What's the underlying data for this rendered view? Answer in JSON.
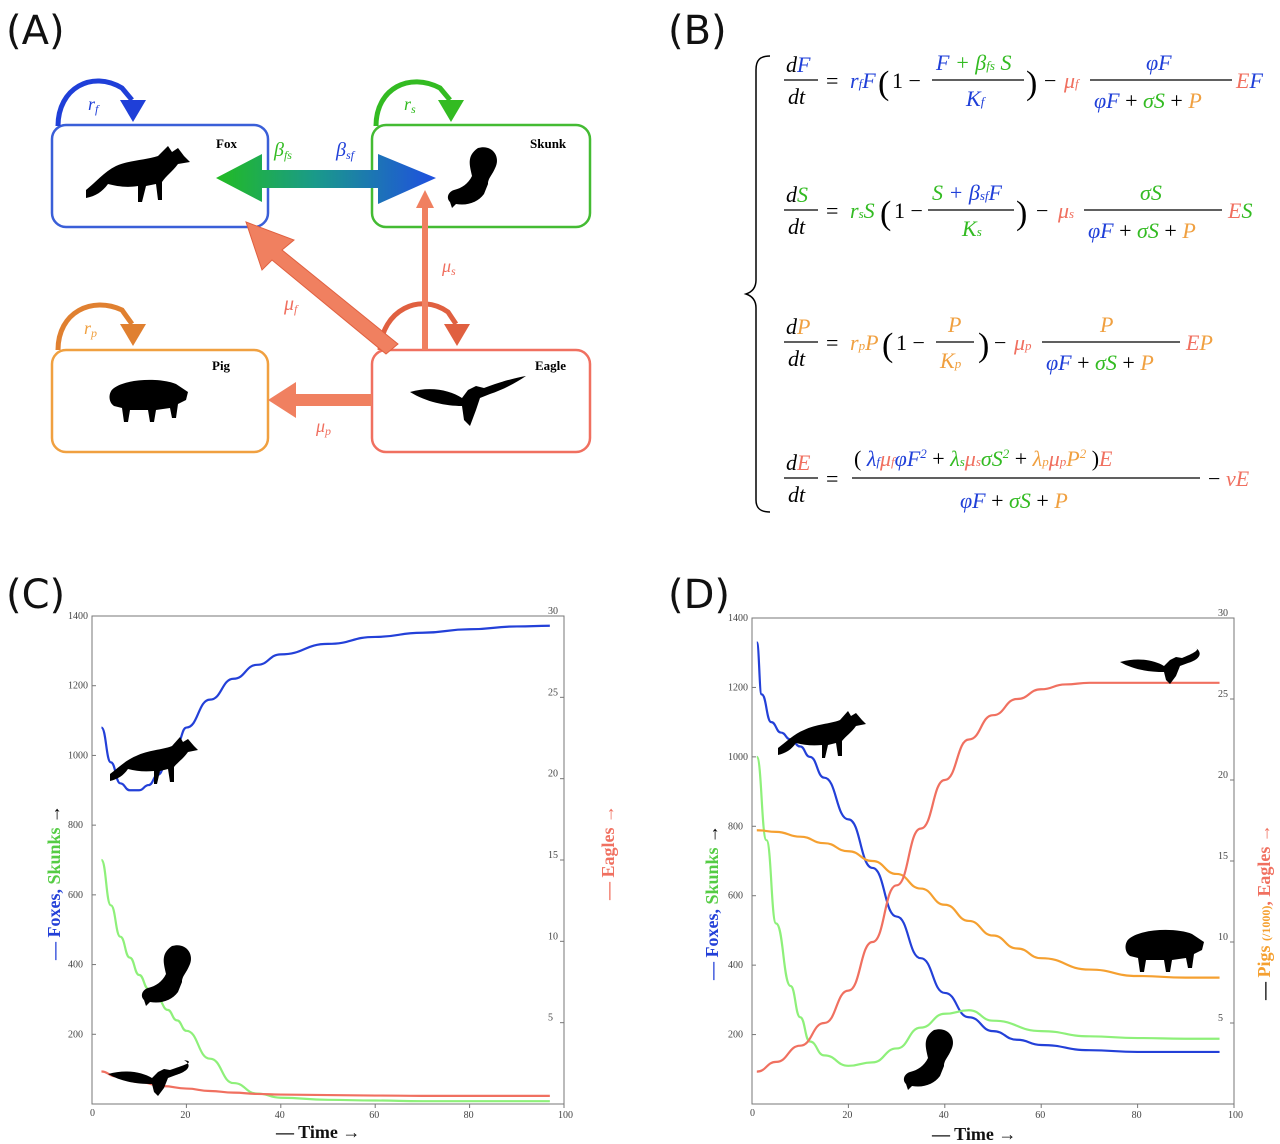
{
  "panels": {
    "a": "(A)",
    "b": "(B)",
    "c": "(C)",
    "d": "(D)"
  },
  "colors": {
    "fox": "#1f3fd8",
    "skunk": "#33bb22",
    "pig": "#f0a040",
    "eagle": "#f07060",
    "fox_line": "#2340d8",
    "skunk_line": "#8ef07a",
    "pig_line": "#f5a030",
    "eagle_line": "#f07060"
  },
  "diagram": {
    "boxes": {
      "fox": "Fox",
      "skunk": "Skunk",
      "pig": "Pig",
      "eagle": "Eagle"
    },
    "loops": {
      "fox": "r",
      "fox_sub": "f",
      "skunk": "r",
      "skunk_sub": "s",
      "pig": "r",
      "pig_sub": "p"
    },
    "arrows": {
      "beta_fs": "β",
      "beta_fs_sub": "fs",
      "beta_sf": "β",
      "beta_sf_sub": "sf",
      "mu_f": "μ",
      "mu_f_sub": "f",
      "mu_s": "μ",
      "mu_s_sub": "s",
      "mu_p": "μ",
      "mu_p_sub": "p"
    }
  },
  "equations": {
    "eq1": {
      "lhs_num": "F",
      "rhs": "r_f F(1 − (F + β_fs S)/K_f) − μ_f φF/(φF + σS + P) EF"
    },
    "eq2": {
      "lhs_num": "S",
      "rhs": "r_s S(1 − (S + β_sf F)/K_s) − μ_s σS/(φF + σS + P) ES"
    },
    "eq3": {
      "lhs_num": "P",
      "rhs": "r_p P(1 − P/K_p) − μ_p P/(φF + σS + P) EP"
    },
    "eq4": {
      "lhs_num": "E",
      "rhs": "(λ_f μ_f φF² + λ_s μ_s σS² + λ_p μ_p P²)E/(φF + σS + P) − νE"
    }
  },
  "chart_data": [
    {
      "type": "line",
      "panel": "C",
      "xlim": [
        0,
        100
      ],
      "x_ticks": [
        "20",
        "40",
        "60",
        "80",
        "100"
      ],
      "ylim_left": [
        0,
        1400
      ],
      "y_ticks_left": [
        "200",
        "400",
        "600",
        "800",
        "1000",
        "1200",
        "1400"
      ],
      "ylim_right": [
        0,
        30
      ],
      "y_ticks_right": [
        "5",
        "10",
        "15",
        "20",
        "25",
        "30"
      ],
      "xlabel": "— Time →",
      "ylabel_left_parts": [
        "— Foxes, ",
        "Skunks",
        " →"
      ],
      "ylabel_right_parts": [
        "— Eagles →"
      ],
      "series": [
        {
          "axis": "left",
          "color": "fox_line",
          "x": [
            2,
            4,
            6,
            8,
            10,
            12,
            14,
            16,
            18,
            20,
            25,
            30,
            35,
            40,
            50,
            60,
            70,
            80,
            90,
            97
          ],
          "y": [
            1080,
            980,
            920,
            900,
            900,
            915,
            945,
            985,
            1035,
            1080,
            1160,
            1220,
            1260,
            1290,
            1320,
            1340,
            1352,
            1362,
            1370,
            1372
          ]
        },
        {
          "axis": "left",
          "color": "skunk_line",
          "x": [
            2,
            4,
            6,
            8,
            10,
            12,
            14,
            16,
            18,
            20,
            25,
            30,
            35,
            40,
            50,
            60,
            70,
            80,
            90,
            97
          ],
          "y": [
            700,
            570,
            480,
            420,
            370,
            330,
            300,
            270,
            240,
            210,
            130,
            60,
            30,
            18,
            12,
            10,
            8,
            8,
            8,
            8
          ]
        },
        {
          "axis": "right",
          "color": "eagle_line",
          "x": [
            2,
            5,
            10,
            15,
            20,
            25,
            30,
            35,
            40,
            50,
            60,
            70,
            80,
            90,
            97
          ],
          "y": [
            2.0,
            1.7,
            1.35,
            1.1,
            0.95,
            0.8,
            0.7,
            0.62,
            0.58,
            0.55,
            0.52,
            0.5,
            0.5,
            0.5,
            0.5
          ]
        }
      ]
    },
    {
      "type": "line",
      "panel": "D",
      "xlim": [
        0,
        100
      ],
      "x_ticks": [
        "20",
        "40",
        "60",
        "80",
        "100"
      ],
      "ylim_left": [
        0,
        1400
      ],
      "y_ticks_left": [
        "200",
        "400",
        "600",
        "800",
        "1000",
        "1200",
        "1400"
      ],
      "ylim_right": [
        0,
        30
      ],
      "y_ticks_right": [
        "5",
        "10",
        "15",
        "20",
        "25",
        "30"
      ],
      "xlabel": "— Time →",
      "ylabel_left_parts": [
        "— Foxes, ",
        "Skunks",
        " →"
      ],
      "ylabel_right_parts": [
        "— ",
        "Pigs ",
        "(/1000)",
        ", Eagles →"
      ],
      "series": [
        {
          "axis": "left",
          "color": "fox_line",
          "x": [
            1,
            2,
            4,
            6,
            8,
            10,
            12,
            15,
            20,
            25,
            30,
            35,
            40,
            45,
            50,
            55,
            60,
            70,
            80,
            90,
            97
          ],
          "y": [
            1330,
            1180,
            1100,
            1070,
            1050,
            1030,
            1000,
            940,
            820,
            680,
            540,
            420,
            320,
            250,
            210,
            185,
            170,
            155,
            150,
            150,
            150
          ]
        },
        {
          "axis": "left",
          "color": "skunk_line",
          "x": [
            1,
            3,
            5,
            8,
            10,
            12,
            15,
            20,
            25,
            30,
            35,
            40,
            45,
            50,
            60,
            70,
            80,
            90,
            97
          ],
          "y": [
            1000,
            760,
            520,
            340,
            250,
            180,
            140,
            110,
            120,
            160,
            220,
            260,
            270,
            240,
            210,
            195,
            190,
            188,
            188
          ]
        },
        {
          "axis": "right",
          "color": "pig_line",
          "x": [
            1,
            5,
            10,
            15,
            20,
            25,
            30,
            35,
            40,
            45,
            50,
            55,
            60,
            70,
            80,
            90,
            97
          ],
          "y": [
            16.9,
            16.8,
            16.5,
            16.1,
            15.6,
            15.0,
            14.2,
            13.3,
            12.3,
            11.3,
            10.4,
            9.6,
            9.0,
            8.3,
            7.9,
            7.8,
            7.8
          ]
        },
        {
          "axis": "right",
          "color": "eagle_line",
          "x": [
            1,
            5,
            10,
            15,
            20,
            25,
            30,
            35,
            40,
            45,
            50,
            55,
            60,
            65,
            70,
            80,
            90,
            97
          ],
          "y": [
            2.0,
            2.6,
            3.6,
            5.0,
            7.0,
            10.0,
            13.5,
            17.0,
            20.0,
            22.5,
            24.0,
            25.0,
            25.6,
            25.9,
            26.0,
            26.0,
            26.0,
            26.0
          ]
        }
      ]
    }
  ]
}
